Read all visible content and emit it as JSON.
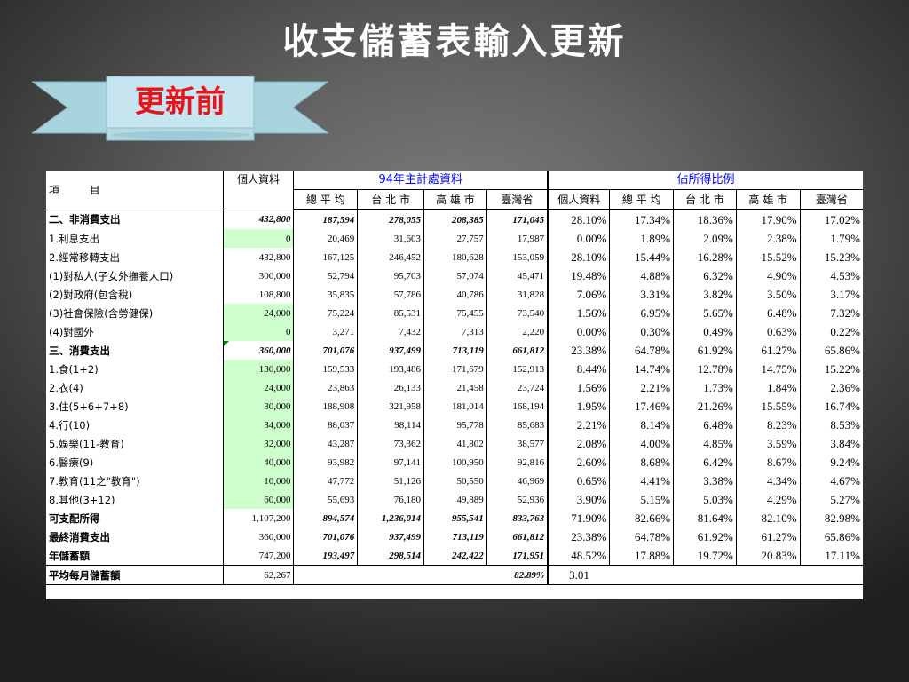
{
  "slide": {
    "title": "收支儲蓄表輸入更新",
    "ribbon_label": "更新前"
  },
  "table": {
    "header": {
      "item": "項　　　目",
      "personal": "個人資料",
      "group_94": "94年主計處資料",
      "group_ratio": "佔所得比例",
      "sub": [
        "總 平 均",
        "台 北 市",
        "高 雄 市",
        "臺灣省",
        "個人資料",
        "總 平 均",
        "台 北 市",
        "高 雄 市",
        "臺灣省"
      ]
    },
    "rows": [
      {
        "label": "二、非消費支出",
        "personal": "432,800",
        "avg": "187,594",
        "taipei": "278,055",
        "kaohsiung": "208,385",
        "taiwan": "171,045",
        "p_personal": "28.10%",
        "p_avg": "17.34%",
        "p_taipei": "18.36%",
        "p_kaohsiung": "17.90%",
        "p_taiwan": "17.02%"
      },
      {
        "label": "1.利息支出",
        "personal": "0",
        "avg": "20,469",
        "taipei": "31,603",
        "kaohsiung": "27,757",
        "taiwan": "17,987",
        "p_personal": "0.00%",
        "p_avg": "1.89%",
        "p_taipei": "2.09%",
        "p_kaohsiung": "2.38%",
        "p_taiwan": "1.79%"
      },
      {
        "label": "2.經常移轉支出",
        "personal": "432,800",
        "avg": "167,125",
        "taipei": "246,452",
        "kaohsiung": "180,628",
        "taiwan": "153,059",
        "p_personal": "28.10%",
        "p_avg": "15.44%",
        "p_taipei": "16.28%",
        "p_kaohsiung": "15.52%",
        "p_taiwan": "15.23%"
      },
      {
        "label": "(1)對私人(子女外撫養人口)",
        "personal": "300,000",
        "avg": "52,794",
        "taipei": "95,703",
        "kaohsiung": "57,074",
        "taiwan": "45,471",
        "p_personal": "19.48%",
        "p_avg": "4.88%",
        "p_taipei": "6.32%",
        "p_kaohsiung": "4.90%",
        "p_taiwan": "4.53%"
      },
      {
        "label": "(2)對政府(包含稅)",
        "personal": "108,800",
        "avg": "35,835",
        "taipei": "57,786",
        "kaohsiung": "40,786",
        "taiwan": "31,828",
        "p_personal": "7.06%",
        "p_avg": "3.31%",
        "p_taipei": "3.82%",
        "p_kaohsiung": "3.50%",
        "p_taiwan": "3.17%"
      },
      {
        "label": "(3)社會保險(含勞健保)",
        "personal": "24,000",
        "avg": "75,224",
        "taipei": "85,531",
        "kaohsiung": "75,455",
        "taiwan": "73,540",
        "p_personal": "1.56%",
        "p_avg": "6.95%",
        "p_taipei": "5.65%",
        "p_kaohsiung": "6.48%",
        "p_taiwan": "7.32%"
      },
      {
        "label": "(4)對國外",
        "personal": "0",
        "avg": "3,271",
        "taipei": "7,432",
        "kaohsiung": "7,313",
        "taiwan": "2,220",
        "p_personal": "0.00%",
        "p_avg": "0.30%",
        "p_taipei": "0.49%",
        "p_kaohsiung": "0.63%",
        "p_taiwan": "0.22%"
      },
      {
        "label": "三、消費支出",
        "personal": "360,000",
        "avg": "701,076",
        "taipei": "937,499",
        "kaohsiung": "713,119",
        "taiwan": "661,812",
        "p_personal": "23.38%",
        "p_avg": "64.78%",
        "p_taipei": "61.92%",
        "p_kaohsiung": "61.27%",
        "p_taiwan": "65.86%"
      },
      {
        "label": "1.食(1+2)",
        "personal": "130,000",
        "avg": "159,533",
        "taipei": "193,486",
        "kaohsiung": "171,679",
        "taiwan": "152,913",
        "p_personal": "8.44%",
        "p_avg": "14.74%",
        "p_taipei": "12.78%",
        "p_kaohsiung": "14.75%",
        "p_taiwan": "15.22%"
      },
      {
        "label": "2.衣(4)",
        "personal": "24,000",
        "avg": "23,863",
        "taipei": "26,133",
        "kaohsiung": "21,458",
        "taiwan": "23,724",
        "p_personal": "1.56%",
        "p_avg": "2.21%",
        "p_taipei": "1.73%",
        "p_kaohsiung": "1.84%",
        "p_taiwan": "2.36%"
      },
      {
        "label": "3.住(5+6+7+8)",
        "personal": "30,000",
        "avg": "188,908",
        "taipei": "321,958",
        "kaohsiung": "181,014",
        "taiwan": "168,194",
        "p_personal": "1.95%",
        "p_avg": "17.46%",
        "p_taipei": "21.26%",
        "p_kaohsiung": "15.55%",
        "p_taiwan": "16.74%"
      },
      {
        "label": "4.行(10)",
        "personal": "34,000",
        "avg": "88,037",
        "taipei": "98,114",
        "kaohsiung": "95,778",
        "taiwan": "85,683",
        "p_personal": "2.21%",
        "p_avg": "8.14%",
        "p_taipei": "6.48%",
        "p_kaohsiung": "8.23%",
        "p_taiwan": "8.53%"
      },
      {
        "label": "5.娛樂(11-教育)",
        "personal": "32,000",
        "avg": "43,287",
        "taipei": "73,362",
        "kaohsiung": "41,802",
        "taiwan": "38,577",
        "p_personal": "2.08%",
        "p_avg": "4.00%",
        "p_taipei": "4.85%",
        "p_kaohsiung": "3.59%",
        "p_taiwan": "3.84%"
      },
      {
        "label": "6.醫療(9)",
        "personal": "40,000",
        "avg": "93,982",
        "taipei": "97,141",
        "kaohsiung": "100,950",
        "taiwan": "92,816",
        "p_personal": "2.60%",
        "p_avg": "8.68%",
        "p_taipei": "6.42%",
        "p_kaohsiung": "8.67%",
        "p_taiwan": "9.24%"
      },
      {
        "label": "7.教育(11之\"教育\")",
        "personal": "10,000",
        "avg": "47,772",
        "taipei": "51,126",
        "kaohsiung": "50,550",
        "taiwan": "46,969",
        "p_personal": "0.65%",
        "p_avg": "4.41%",
        "p_taipei": "3.38%",
        "p_kaohsiung": "4.34%",
        "p_taiwan": "4.67%"
      },
      {
        "label": "8.其他(3+12)",
        "personal": "60,000",
        "avg": "55,693",
        "taipei": "76,180",
        "kaohsiung": "49,889",
        "taiwan": "52,936",
        "p_personal": "3.90%",
        "p_avg": "5.15%",
        "p_taipei": "5.03%",
        "p_kaohsiung": "4.29%",
        "p_taiwan": "5.27%"
      },
      {
        "label": "可支配所得",
        "personal": "1,107,200",
        "avg": "894,574",
        "taipei": "1,236,014",
        "kaohsiung": "955,541",
        "taiwan": "833,763",
        "p_personal": "71.90%",
        "p_avg": "82.66%",
        "p_taipei": "81.64%",
        "p_kaohsiung": "82.10%",
        "p_taiwan": "82.98%"
      },
      {
        "label": "最終消費支出",
        "personal": "360,000",
        "avg": "701,076",
        "taipei": "937,499",
        "kaohsiung": "713,119",
        "taiwan": "661,812",
        "p_personal": "23.38%",
        "p_avg": "64.78%",
        "p_taipei": "61.92%",
        "p_kaohsiung": "61.27%",
        "p_taiwan": "65.86%"
      },
      {
        "label": "年儲蓄額",
        "personal": "747,200",
        "avg": "193,497",
        "taipei": "298,514",
        "kaohsiung": "242,422",
        "taiwan": "171,951",
        "p_personal": "48.52%",
        "p_avg": "17.88%",
        "p_taipei": "19.72%",
        "p_kaohsiung": "20.83%",
        "p_taiwan": "17.11%"
      }
    ],
    "footer": {
      "label": "平均每月儲蓄額",
      "personal": "62,267",
      "taiwan": "82.89%",
      "p_personal": "3.01"
    }
  }
}
